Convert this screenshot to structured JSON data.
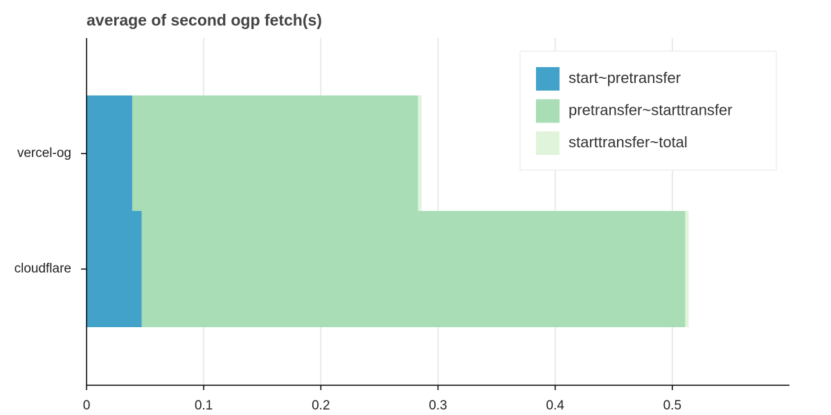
{
  "chart_data": {
    "type": "bar",
    "orientation": "horizontal",
    "stacked": true,
    "title": "average of second ogp fetch(s)",
    "categories": [
      "vercel-og",
      "cloudflare"
    ],
    "series": [
      {
        "name": "start~pretransfer",
        "color": "#43a2ca",
        "values": [
          0.039,
          0.047
        ]
      },
      {
        "name": "pretransfer~starttransfer",
        "color": "#a8ddb5",
        "values": [
          0.244,
          0.464
        ]
      },
      {
        "name": "starttransfer~total",
        "color": "#e0f3db",
        "values": [
          0.003,
          0.003
        ]
      }
    ],
    "xlim": [
      0,
      0.6
    ],
    "xticks": [
      0,
      0.1,
      0.2,
      0.3,
      0.4,
      0.5
    ],
    "grid": true,
    "legend": "top-right"
  }
}
